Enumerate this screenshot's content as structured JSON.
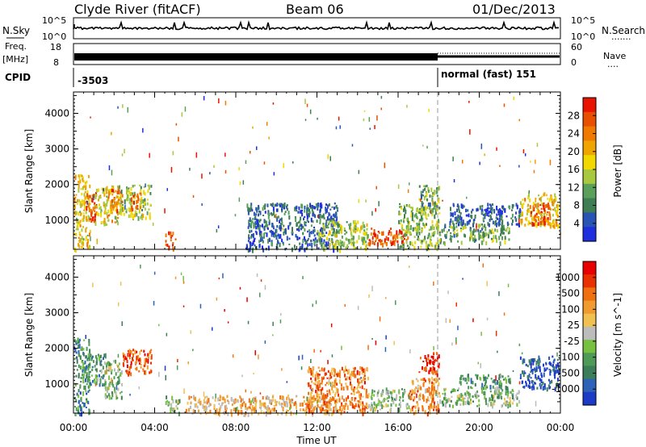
{
  "header": {
    "station": "Clyde River (fitACF)",
    "beam": "Beam 06",
    "date": "01/Dec/2013"
  },
  "noise_panel": {
    "left_label": "N.Sky",
    "left_top": "10^5",
    "left_bottom": "10^0",
    "right_label": "N.Search",
    "right_top": "10^5",
    "right_bottom": "10^0",
    "right_legend": "......."
  },
  "freq_panel": {
    "label_line1": "Freq.",
    "label_line2": "[MHz]",
    "left_top": "18",
    "left_bottom": "8",
    "right_top": "60",
    "right_bottom": "0",
    "right_label": "Nave",
    "right_legend": "...."
  },
  "cpid_panel": {
    "label": "CPID",
    "segments": [
      {
        "text": "-3503",
        "start_hour": 0
      },
      {
        "text": "normal (fast) 151",
        "start_hour": 18
      }
    ]
  },
  "chart_data": [
    {
      "type": "heatmap",
      "name": "power",
      "ylabel": "Slant Range [km]",
      "xlabel": "",
      "xlim": [
        0,
        24
      ],
      "ylim": [
        180,
        4600
      ],
      "yticks": [
        1000,
        2000,
        3000,
        4000
      ],
      "colorbar": {
        "label": "Power [dB]",
        "ticks": [
          "4",
          "8",
          "12",
          "16",
          "20",
          "24",
          "28"
        ],
        "colors": [
          "#1f2fe0",
          "#2a54b4",
          "#3e7e52",
          "#5aa05a",
          "#a8c840",
          "#f0d800",
          "#f0a400",
          "#f07a00",
          "#e85000",
          "#e81400"
        ]
      },
      "regions": [
        {
          "t0": 0.0,
          "t1": 0.8,
          "r0": 180,
          "r1": 2300,
          "level": 0.55
        },
        {
          "t0": 0.6,
          "t1": 1.1,
          "r0": 1000,
          "r1": 1800,
          "level": 0.85
        },
        {
          "t0": 1.0,
          "t1": 2.2,
          "r0": 900,
          "r1": 2000,
          "level": 0.55
        },
        {
          "t0": 1.8,
          "t1": 2.4,
          "r0": 1300,
          "r1": 1900,
          "level": 0.8
        },
        {
          "t0": 2.2,
          "t1": 3.8,
          "r0": 1100,
          "r1": 2000,
          "level": 0.45
        },
        {
          "t0": 2.8,
          "t1": 3.3,
          "r0": 1300,
          "r1": 1800,
          "level": 0.8
        },
        {
          "t0": 4.5,
          "t1": 5.0,
          "r0": 200,
          "r1": 700,
          "level": 0.9
        },
        {
          "t0": 8.5,
          "t1": 13.0,
          "r0": 200,
          "r1": 1500,
          "level": 0.2
        },
        {
          "t0": 12.0,
          "t1": 14.5,
          "r0": 200,
          "r1": 1000,
          "level": 0.45
        },
        {
          "t0": 14.5,
          "t1": 16.5,
          "r0": 350,
          "r1": 800,
          "level": 0.85
        },
        {
          "t0": 16.0,
          "t1": 18.0,
          "r0": 200,
          "r1": 1500,
          "level": 0.4
        },
        {
          "t0": 17.0,
          "t1": 18.0,
          "r0": 1200,
          "r1": 2000,
          "level": 0.35
        },
        {
          "t0": 18.0,
          "t1": 21.5,
          "r0": 400,
          "r1": 900,
          "level": 0.35
        },
        {
          "t0": 18.5,
          "t1": 22.0,
          "r0": 900,
          "r1": 1500,
          "level": 0.15
        },
        {
          "t0": 22.0,
          "t1": 23.9,
          "r0": 850,
          "r1": 1800,
          "level": 0.6
        },
        {
          "t0": 22.5,
          "t1": 23.5,
          "r0": 900,
          "r1": 1500,
          "level": 0.85
        }
      ]
    },
    {
      "type": "heatmap",
      "name": "velocity",
      "ylabel": "Slant Range [km]",
      "xlabel": "Time UT",
      "xlim": [
        0,
        24
      ],
      "ylim": [
        180,
        4600
      ],
      "yticks": [
        1000,
        2000,
        3000,
        4000
      ],
      "xticks": [
        "00:00",
        "04:00",
        "08:00",
        "12:00",
        "16:00",
        "20:00",
        "00:00"
      ],
      "colorbar": {
        "label": "Velocity [m s^-1]",
        "ticks": [
          "1000",
          "500",
          "100",
          "25",
          "-25",
          "-100",
          "-500",
          "-1000"
        ],
        "colors": [
          "#1c3cc8",
          "#2e62b8",
          "#3c7e5a",
          "#4e9a56",
          "#78c040",
          "#bcbcbc",
          "#f0c050",
          "#f09a30",
          "#f07010",
          "#e83000",
          "#e80000"
        ]
      },
      "regions": [
        {
          "t0": 0.0,
          "t1": 0.8,
          "r0": 180,
          "r1": 2300,
          "level": 0.25
        },
        {
          "t0": 0.6,
          "t1": 1.5,
          "r0": 1000,
          "r1": 1900,
          "level": 0.3
        },
        {
          "t0": 1.5,
          "t1": 2.4,
          "r0": 600,
          "r1": 1700,
          "level": 0.4
        },
        {
          "t0": 2.4,
          "t1": 3.8,
          "r0": 1300,
          "r1": 2000,
          "level": 0.8
        },
        {
          "t0": 4.5,
          "t1": 5.2,
          "r0": 200,
          "r1": 700,
          "level": 0.4
        },
        {
          "t0": 5.5,
          "t1": 13.0,
          "r0": 180,
          "r1": 700,
          "level": 0.62
        },
        {
          "t0": 11.5,
          "t1": 14.5,
          "r0": 200,
          "r1": 1500,
          "level": 0.75
        },
        {
          "t0": 14.5,
          "t1": 16.5,
          "r0": 300,
          "r1": 900,
          "level": 0.42
        },
        {
          "t0": 16.5,
          "t1": 18.0,
          "r0": 200,
          "r1": 1200,
          "level": 0.7
        },
        {
          "t0": 17.0,
          "t1": 18.0,
          "r0": 1300,
          "r1": 1900,
          "level": 0.9
        },
        {
          "t0": 18.0,
          "t1": 22.0,
          "r0": 400,
          "r1": 900,
          "level": 0.4
        },
        {
          "t0": 19.0,
          "t1": 21.5,
          "r0": 900,
          "r1": 1300,
          "level": 0.3
        },
        {
          "t0": 22.0,
          "t1": 23.9,
          "r0": 900,
          "r1": 1800,
          "level": 0.08
        }
      ]
    }
  ]
}
